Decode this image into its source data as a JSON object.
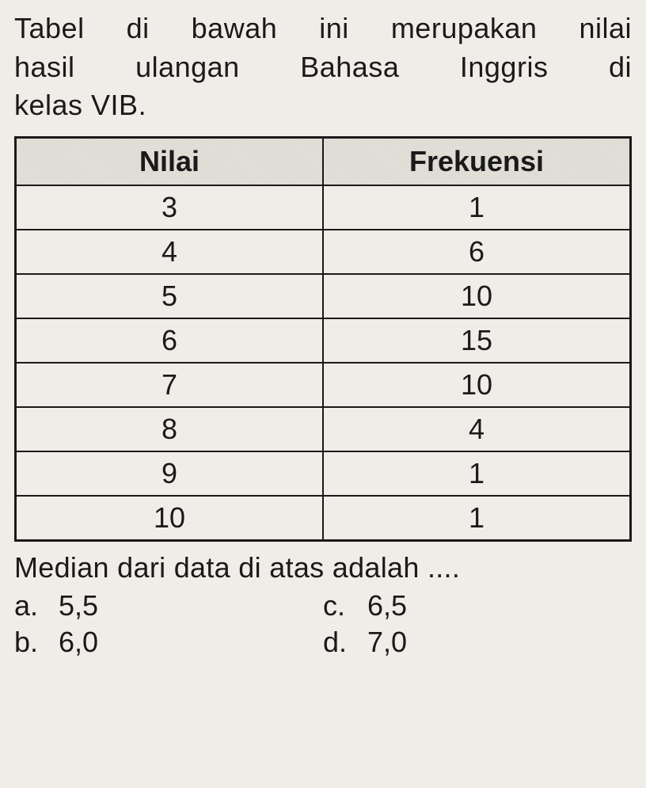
{
  "question": {
    "line1": "Tabel di bawah ini merupakan nilai",
    "line2": "hasil ulangan Bahasa Inggris di",
    "line3": "kelas VIB."
  },
  "table": {
    "headers": {
      "col1": "Nilai",
      "col2": "Frekuensi"
    },
    "rows": [
      {
        "nilai": "3",
        "frekuensi": "1"
      },
      {
        "nilai": "4",
        "frekuensi": "6"
      },
      {
        "nilai": "5",
        "frekuensi": "10"
      },
      {
        "nilai": "6",
        "frekuensi": "15"
      },
      {
        "nilai": "7",
        "frekuensi": "10"
      },
      {
        "nilai": "8",
        "frekuensi": "4"
      },
      {
        "nilai": "9",
        "frekuensi": "1"
      },
      {
        "nilai": "10",
        "frekuensi": "1"
      }
    ],
    "header_bg_color": "#e0dcd6",
    "border_color": "#1a1a1a",
    "cell_fontsize": 36
  },
  "median_text": "Median dari data di atas adalah ....",
  "options": {
    "a": {
      "letter": "a.",
      "value": "5,5"
    },
    "b": {
      "letter": "b.",
      "value": "6,0"
    },
    "c": {
      "letter": "c.",
      "value": "6,5"
    },
    "d": {
      "letter": "d.",
      "value": "7,0"
    }
  },
  "styling": {
    "page_bg": "#f0ede8",
    "text_color": "#1a1a1a",
    "font_family": "Verdana",
    "base_fontsize": 36
  }
}
